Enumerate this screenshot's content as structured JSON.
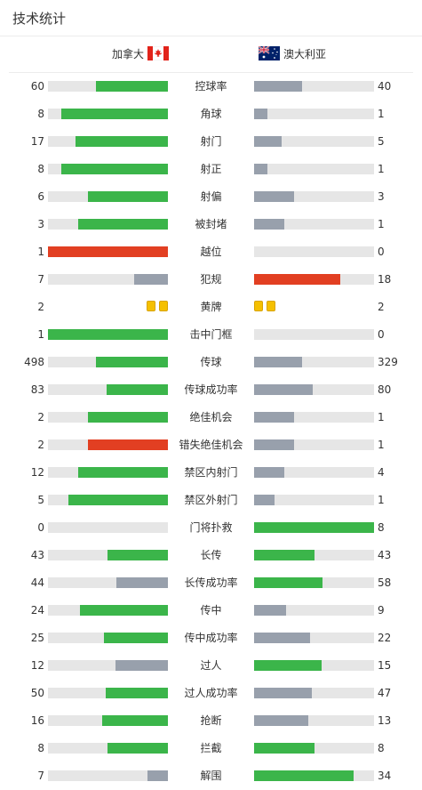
{
  "page": {
    "title": "技术统计"
  },
  "teams": {
    "home": {
      "name": "加拿大",
      "flag": "canada-flag-icon"
    },
    "away": {
      "name": "澳大利亚",
      "flag": "australia-flag-icon"
    }
  },
  "colors": {
    "green": "#3bb54a",
    "gray": "#98a0ac",
    "red": "#e23f22",
    "track": "#e6e6e6",
    "card": "#f5c000"
  },
  "stats": [
    {
      "label": "控球率",
      "home": "60",
      "away": "40",
      "home_pct": 0.6,
      "away_pct": 0.4,
      "home_color": "green",
      "away_color": "gray"
    },
    {
      "label": "角球",
      "home": "8",
      "away": "1",
      "home_pct": 0.89,
      "away_pct": 0.11,
      "home_color": "green",
      "away_color": "gray"
    },
    {
      "label": "射门",
      "home": "17",
      "away": "5",
      "home_pct": 0.77,
      "away_pct": 0.23,
      "home_color": "green",
      "away_color": "gray"
    },
    {
      "label": "射正",
      "home": "8",
      "away": "1",
      "home_pct": 0.89,
      "away_pct": 0.11,
      "home_color": "green",
      "away_color": "gray"
    },
    {
      "label": "射偏",
      "home": "6",
      "away": "3",
      "home_pct": 0.67,
      "away_pct": 0.33,
      "home_color": "green",
      "away_color": "gray"
    },
    {
      "label": "被封堵",
      "home": "3",
      "away": "1",
      "home_pct": 0.75,
      "away_pct": 0.25,
      "home_color": "green",
      "away_color": "gray"
    },
    {
      "label": "越位",
      "home": "1",
      "away": "0",
      "home_pct": 1.0,
      "away_pct": 0.0,
      "home_color": "red",
      "away_color": "gray"
    },
    {
      "label": "犯规",
      "home": "7",
      "away": "18",
      "home_pct": 0.28,
      "away_pct": 0.72,
      "home_color": "gray",
      "away_color": "red"
    },
    {
      "label": "黄牌",
      "home": "2",
      "away": "2",
      "cards": true,
      "home_cards": 2,
      "away_cards": 2
    },
    {
      "label": "击中门框",
      "home": "1",
      "away": "0",
      "home_pct": 1.0,
      "away_pct": 0.0,
      "home_color": "green",
      "away_color": "gray"
    },
    {
      "label": "传球",
      "home": "498",
      "away": "329",
      "home_pct": 0.6,
      "away_pct": 0.4,
      "home_color": "green",
      "away_color": "gray"
    },
    {
      "label": "传球成功率",
      "home": "83",
      "away": "80",
      "home_pct": 0.51,
      "away_pct": 0.49,
      "home_color": "green",
      "away_color": "gray"
    },
    {
      "label": "绝佳机会",
      "home": "2",
      "away": "1",
      "home_pct": 0.67,
      "away_pct": 0.33,
      "home_color": "green",
      "away_color": "gray"
    },
    {
      "label": "错失绝佳机会",
      "home": "2",
      "away": "1",
      "home_pct": 0.67,
      "away_pct": 0.33,
      "home_color": "red",
      "away_color": "gray"
    },
    {
      "label": "禁区内射门",
      "home": "12",
      "away": "4",
      "home_pct": 0.75,
      "away_pct": 0.25,
      "home_color": "green",
      "away_color": "gray"
    },
    {
      "label": "禁区外射门",
      "home": "5",
      "away": "1",
      "home_pct": 0.83,
      "away_pct": 0.17,
      "home_color": "green",
      "away_color": "gray"
    },
    {
      "label": "门将扑救",
      "home": "0",
      "away": "8",
      "home_pct": 0.0,
      "away_pct": 1.0,
      "home_color": "gray",
      "away_color": "green"
    },
    {
      "label": "长传",
      "home": "43",
      "away": "43",
      "home_pct": 0.5,
      "away_pct": 0.5,
      "home_color": "green",
      "away_color": "green"
    },
    {
      "label": "长传成功率",
      "home": "44",
      "away": "58",
      "home_pct": 0.43,
      "away_pct": 0.57,
      "home_color": "gray",
      "away_color": "green"
    },
    {
      "label": "传中",
      "home": "24",
      "away": "9",
      "home_pct": 0.73,
      "away_pct": 0.27,
      "home_color": "green",
      "away_color": "gray"
    },
    {
      "label": "传中成功率",
      "home": "25",
      "away": "22",
      "home_pct": 0.53,
      "away_pct": 0.47,
      "home_color": "green",
      "away_color": "gray"
    },
    {
      "label": "过人",
      "home": "12",
      "away": "15",
      "home_pct": 0.44,
      "away_pct": 0.56,
      "home_color": "gray",
      "away_color": "green"
    },
    {
      "label": "过人成功率",
      "home": "50",
      "away": "47",
      "home_pct": 0.52,
      "away_pct": 0.48,
      "home_color": "green",
      "away_color": "gray"
    },
    {
      "label": "抢断",
      "home": "16",
      "away": "13",
      "home_pct": 0.55,
      "away_pct": 0.45,
      "home_color": "green",
      "away_color": "gray"
    },
    {
      "label": "拦截",
      "home": "8",
      "away": "8",
      "home_pct": 0.5,
      "away_pct": 0.5,
      "home_color": "green",
      "away_color": "green"
    },
    {
      "label": "解围",
      "home": "7",
      "away": "34",
      "home_pct": 0.17,
      "away_pct": 0.83,
      "home_color": "gray",
      "away_color": "green"
    }
  ]
}
